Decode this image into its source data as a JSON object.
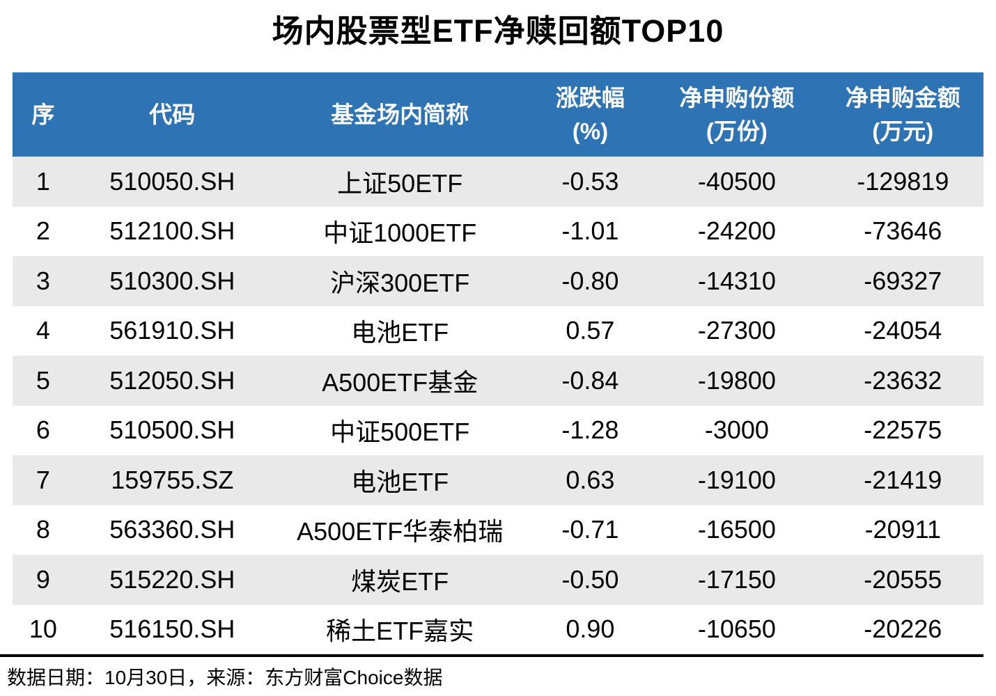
{
  "title": "场内股票型ETF净赎回额TOP10",
  "source_note": "数据日期：10月30日，来源：东方财富Choice数据",
  "colors": {
    "header_bg": "#2E74B5",
    "header_text": "#FFFFFF",
    "stripe_bg": "#E9E9E9",
    "divider": "#000000"
  },
  "chart_data": {
    "type": "table",
    "title": "场内股票型ETF净赎回额TOP10",
    "legend_position": "none",
    "grid": false,
    "columns": [
      {
        "key": "rank",
        "label_line1": "序",
        "label_line2": ""
      },
      {
        "key": "code",
        "label_line1": "代码",
        "label_line2": ""
      },
      {
        "key": "name",
        "label_line1": "基金场内简称",
        "label_line2": ""
      },
      {
        "key": "change_pct",
        "label_line1": "涨跌幅",
        "label_line2": "(%)"
      },
      {
        "key": "net_shares",
        "label_line1": "净申购份额",
        "label_line2": "(万份)"
      },
      {
        "key": "net_amount",
        "label_line1": "净申购金额",
        "label_line2": "(万元)"
      }
    ],
    "rows": [
      [
        "1",
        "510050.SH",
        "上证50ETF",
        "-0.53",
        "-40500",
        "-129819"
      ],
      [
        "2",
        "512100.SH",
        "中证1000ETF",
        "-1.01",
        "-24200",
        "-73646"
      ],
      [
        "3",
        "510300.SH",
        "沪深300ETF",
        "-0.80",
        "-14310",
        "-69327"
      ],
      [
        "4",
        "561910.SH",
        "电池ETF",
        "0.57",
        "-27300",
        "-24054"
      ],
      [
        "5",
        "512050.SH",
        "A500ETF基金",
        "-0.84",
        "-19800",
        "-23632"
      ],
      [
        "6",
        "510500.SH",
        "中证500ETF",
        "-1.28",
        "-3000",
        "-22575"
      ],
      [
        "7",
        "159755.SZ",
        "电池ETF",
        "0.63",
        "-19100",
        "-21419"
      ],
      [
        "8",
        "563360.SH",
        "A500ETF华泰柏瑞",
        "-0.71",
        "-16500",
        "-20911"
      ],
      [
        "9",
        "515220.SH",
        "煤炭ETF",
        "-0.50",
        "-17150",
        "-20555"
      ],
      [
        "10",
        "516150.SH",
        "稀土ETF嘉实",
        "0.90",
        "-10650",
        "-20226"
      ]
    ]
  }
}
